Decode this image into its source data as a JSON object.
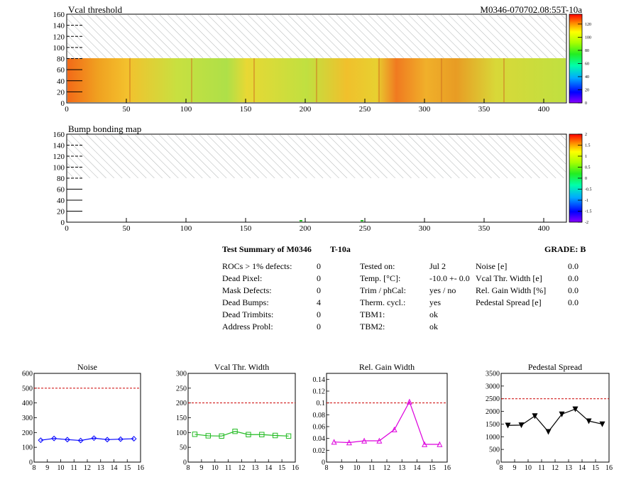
{
  "header": {
    "map1_title": "Vcal threshold",
    "module_id": "M0346-070702.08:55T-10a",
    "map2_title": "Bump bonding map"
  },
  "map1": {
    "x_ticks": [
      "0",
      "50",
      "100",
      "150",
      "200",
      "250",
      "300",
      "350",
      "400"
    ],
    "y_ticks": [
      "0",
      "20",
      "40",
      "60",
      "80",
      "100",
      "120",
      "140",
      "160"
    ],
    "colorbar_ticks": [
      "0",
      "20",
      "40",
      "60",
      "80",
      "100",
      "120"
    ]
  },
  "map2": {
    "x_ticks": [
      "0",
      "50",
      "100",
      "150",
      "200",
      "250",
      "300",
      "350",
      "400"
    ],
    "y_ticks": [
      "0",
      "20",
      "40",
      "60",
      "80",
      "100",
      "120",
      "140",
      "160"
    ],
    "colorbar_ticks": [
      "-2",
      "-1.5",
      "-1",
      "-0.5",
      "0",
      "0.5",
      "1",
      "1.5",
      "2"
    ]
  },
  "summary": {
    "title": "Test Summary of M0346",
    "temp_tag": "T-10a",
    "grade": "GRADE:  B",
    "col1": [
      {
        "label": "ROCs > 1% defects:",
        "value": "0"
      },
      {
        "label": "Dead Pixel:",
        "value": "0"
      },
      {
        "label": "Mask Defects:",
        "value": "0"
      },
      {
        "label": "Dead Bumps:",
        "value": "4"
      },
      {
        "label": "Dead Trimbits:",
        "value": "0"
      },
      {
        "label": "Address Probl:",
        "value": "0"
      }
    ],
    "col2": [
      {
        "label": "Tested on:",
        "value": "Jul 2"
      },
      {
        "label": "Temp. [°C]:",
        "value": "-10.0 +- 0.0"
      },
      {
        "label": "Trim / phCal:",
        "value": "yes / no"
      },
      {
        "label": "Therm. cycl.:",
        "value": "yes"
      },
      {
        "label": "TBM1:",
        "value": "ok"
      },
      {
        "label": "TBM2:",
        "value": "ok"
      }
    ],
    "col3": [
      {
        "label": "Noise [e]",
        "value": "0.0"
      },
      {
        "label": "Vcal Thr. Width [e]",
        "value": "0.0"
      },
      {
        "label": "Rel. Gain Width [%]",
        "value": "0.0"
      },
      {
        "label": "Pedestal Spread [e]",
        "value": "0.0"
      }
    ]
  },
  "colors": {
    "noise": "#0000ff",
    "vcal": "#22bb22",
    "gain": "#dd00dd",
    "pedestal": "#000000",
    "limit": "#cc0000"
  },
  "chart_data": [
    {
      "type": "line",
      "title": "Noise",
      "x": [
        8.5,
        9.5,
        10.5,
        11.5,
        12.5,
        13.5,
        14.5,
        15.5
      ],
      "series": [
        {
          "values": [
            148,
            160,
            152,
            146,
            162,
            152,
            155,
            158
          ]
        }
      ],
      "limit": 500,
      "xlim": [
        8,
        16
      ],
      "ylim": [
        0,
        600
      ],
      "xticks": [
        "8",
        "9",
        "10",
        "11",
        "12",
        "13",
        "14",
        "15",
        "16"
      ],
      "yticks": [
        "0",
        "100",
        "200",
        "300",
        "400",
        "500",
        "600"
      ],
      "yticks_values": [
        0,
        100,
        200,
        300,
        400,
        500,
        600
      ],
      "marker": "diamond"
    },
    {
      "type": "line",
      "title": "Vcal Thr. Width",
      "x": [
        8.5,
        9.5,
        10.5,
        11.5,
        12.5,
        13.5,
        14.5,
        15.5
      ],
      "series": [
        {
          "values": [
            94,
            89,
            88,
            104,
            93,
            93,
            90,
            88
          ]
        }
      ],
      "limit": 200,
      "xlim": [
        8,
        16
      ],
      "ylim": [
        0,
        300
      ],
      "xticks": [
        "8",
        "9",
        "10",
        "11",
        "12",
        "13",
        "14",
        "15",
        "16"
      ],
      "yticks": [
        "0",
        "50",
        "100",
        "150",
        "200",
        "250",
        "300"
      ],
      "yticks_values": [
        0,
        50,
        100,
        150,
        200,
        250,
        300
      ],
      "marker": "square"
    },
    {
      "type": "line",
      "title": "Rel. Gain Width",
      "x": [
        8.5,
        9.5,
        10.5,
        11.5,
        12.5,
        13.5,
        14.5,
        15.5
      ],
      "series": [
        {
          "values": [
            0.034,
            0.033,
            0.036,
            0.036,
            0.055,
            0.102,
            0.03,
            0.03
          ]
        }
      ],
      "limit": 0.1,
      "xlim": [
        8,
        16
      ],
      "ylim": [
        0,
        0.15
      ],
      "xticks": [
        "8",
        "9",
        "10",
        "11",
        "12",
        "13",
        "14",
        "15",
        "16"
      ],
      "yticks": [
        "0",
        "0.02",
        "0.04",
        "0.06",
        "0.08",
        "0.1",
        "0.12",
        "0.14"
      ],
      "yticks_values": [
        0,
        0.02,
        0.04,
        0.06,
        0.08,
        0.1,
        0.12,
        0.14
      ],
      "marker": "triangle-up"
    },
    {
      "type": "line",
      "title": "Pedestal Spread",
      "x": [
        8.5,
        9.5,
        10.5,
        11.5,
        12.5,
        13.5,
        14.5,
        15.5
      ],
      "series": [
        {
          "values": [
            1450,
            1460,
            1820,
            1200,
            1890,
            2090,
            1620,
            1500
          ]
        }
      ],
      "limit": 2500,
      "xlim": [
        8,
        16
      ],
      "ylim": [
        0,
        3500
      ],
      "xticks": [
        "8",
        "9",
        "10",
        "11",
        "12",
        "13",
        "14",
        "15",
        "16"
      ],
      "yticks": [
        "0",
        "500",
        "1000",
        "1500",
        "2000",
        "2500",
        "3000",
        "3500"
      ],
      "yticks_values": [
        0,
        500,
        1000,
        1500,
        2000,
        2500,
        3000,
        3500
      ],
      "marker": "triangle-down"
    }
  ]
}
